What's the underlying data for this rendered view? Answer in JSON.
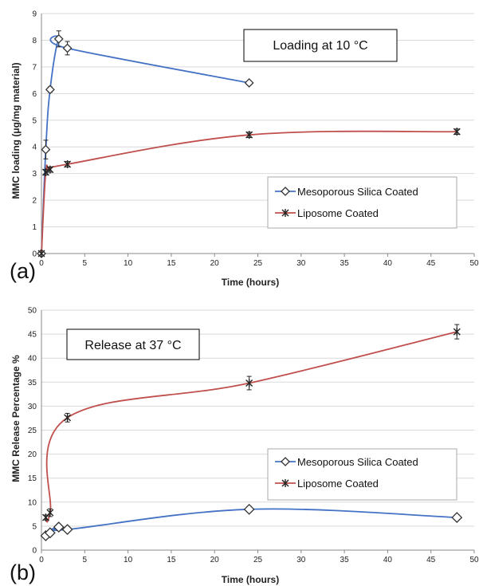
{
  "chart_data": [
    {
      "type": "line",
      "panel_label": "(a)",
      "annotation": "Loading at 10 °C",
      "xlabel": "Time (hours)",
      "ylabel": "MMC loading (μg/mg material)",
      "xlim": [
        0,
        50
      ],
      "ylim": [
        0,
        9
      ],
      "xticks": [
        "0",
        "5",
        "10",
        "15",
        "20",
        "25",
        "30",
        "35",
        "40",
        "45",
        "50"
      ],
      "yticks": [
        "0",
        "1",
        "2",
        "3",
        "4",
        "5",
        "6",
        "7",
        "8",
        "9"
      ],
      "legend_position": "right",
      "series": [
        {
          "name": "Mesoporous Silica Coated",
          "color": "#4472c4",
          "marker": "diamond",
          "x": [
            0,
            0.5,
            1,
            2,
            3,
            24
          ],
          "y": [
            0,
            3.9,
            6.15,
            8.05,
            7.7,
            6.4
          ],
          "err": [
            0,
            0.35,
            0.1,
            0.3,
            0.25,
            0.07
          ]
        },
        {
          "name": "Liposome Coated",
          "color": "#c0504d",
          "marker": "asterisk",
          "x": [
            0,
            0.5,
            1,
            3,
            24,
            48
          ],
          "y": [
            0,
            3.05,
            3.15,
            3.35,
            4.45,
            4.57
          ],
          "err": [
            0,
            0.1,
            0.1,
            0.1,
            0.1,
            0.1
          ]
        }
      ]
    },
    {
      "type": "line",
      "panel_label": "(b)",
      "annotation": "Release at 37 °C",
      "xlabel": "Time (hours)",
      "ylabel": "MMC Release Percentage %",
      "xlim": [
        0,
        50
      ],
      "ylim": [
        0,
        50
      ],
      "xticks": [
        "0",
        "5",
        "10",
        "15",
        "20",
        "25",
        "30",
        "35",
        "40",
        "45",
        "50"
      ],
      "yticks": [
        "0",
        "5",
        "10",
        "15",
        "20",
        "25",
        "30",
        "35",
        "40",
        "45",
        "50"
      ],
      "legend_position": "right",
      "series": [
        {
          "name": "Mesoporous Silica Coated",
          "color": "#4472c4",
          "marker": "diamond",
          "x": [
            0.5,
            1,
            2,
            3,
            24,
            48
          ],
          "y": [
            3.0,
            3.6,
            4.8,
            4.3,
            8.5,
            6.8
          ],
          "err": [
            0.4,
            0.4,
            0.5,
            0.4,
            0.6,
            0.4
          ]
        },
        {
          "name": "Liposome Coated",
          "color": "#c0504d",
          "marker": "asterisk",
          "x": [
            0.5,
            1,
            3,
            24,
            48
          ],
          "y": [
            6.8,
            7.8,
            27.6,
            34.8,
            45.5
          ],
          "err": [
            0.5,
            0.8,
            0.9,
            1.4,
            1.5
          ]
        }
      ]
    }
  ]
}
